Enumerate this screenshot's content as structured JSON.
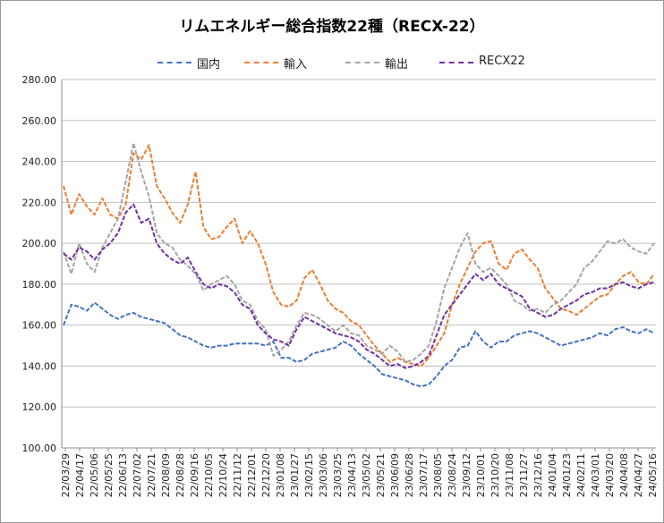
{
  "chart_data": {
    "type": "line",
    "title": "リムエネルギー総合指数22種（RECX-22）",
    "ylim": [
      100,
      280
    ],
    "yticks": [
      "100.00",
      "120.00",
      "140.00",
      "160.00",
      "180.00",
      "200.00",
      "220.00",
      "240.00",
      "260.00",
      "280.00"
    ],
    "grid": true,
    "legend_position": "top",
    "x_tick_labels": [
      "22/03/29",
      "22/04/17",
      "22/05/06",
      "22/05/25",
      "22/06/13",
      "22/07/02",
      "22/07/21",
      "22/08/09",
      "22/08/28",
      "22/09/16",
      "22/10/05",
      "22/10/24",
      "22/11/12",
      "22/12/01",
      "22/12/20",
      "23/01/08",
      "23/01/27",
      "23/02/15",
      "23/03/06",
      "23/03/25",
      "23/04/13",
      "23/05/02",
      "23/05/21",
      "23/06/09",
      "23/06/28",
      "23/07/17",
      "23/08/05",
      "23/08/24",
      "23/09/12",
      "23/10/01",
      "23/10/20",
      "23/11/08",
      "23/11/27",
      "23/12/16",
      "24/01/04",
      "24/01/23",
      "24/02/11",
      "24/03/01",
      "24/03/20",
      "24/04/08",
      "24/04/27",
      "24/05/16"
    ],
    "series": [
      {
        "name": "国内",
        "color": "#4472C4",
        "values": [
          160,
          170,
          169,
          167,
          171,
          168,
          165,
          163,
          165,
          166,
          164,
          163,
          162,
          161,
          158,
          155,
          154,
          152,
          150,
          149,
          150,
          150,
          151,
          151,
          151,
          151,
          150,
          152,
          144,
          144,
          142,
          143,
          146,
          147,
          148,
          149,
          152,
          150,
          146,
          143,
          140,
          136,
          135,
          134,
          133,
          131,
          130,
          131,
          135,
          140,
          143,
          149,
          150,
          157,
          152,
          149,
          152,
          152,
          155,
          156,
          157,
          156,
          154,
          152,
          150,
          151,
          152,
          153,
          154,
          156,
          155,
          158,
          159,
          157,
          156,
          158,
          156
        ]
      },
      {
        "name": "輸入",
        "color": "#ED7D31",
        "values": [
          228,
          214,
          224,
          218,
          214,
          222,
          214,
          212,
          219,
          244,
          241,
          248,
          228,
          222,
          215,
          210,
          219,
          235,
          208,
          202,
          203,
          208,
          212,
          200,
          206,
          200,
          190,
          176,
          170,
          169,
          172,
          183,
          187,
          180,
          172,
          168,
          166,
          162,
          160,
          155,
          150,
          146,
          142,
          144,
          142,
          141,
          140,
          144,
          150,
          156,
          170,
          180,
          188,
          196,
          200,
          201,
          190,
          187,
          195,
          197,
          192,
          188,
          178,
          173,
          168,
          167,
          165,
          168,
          171,
          174,
          175,
          180,
          184,
          186,
          181,
          180,
          185
        ]
      },
      {
        "name": "輸出",
        "color": "#A5A5A5",
        "values": [
          196,
          185,
          200,
          190,
          186,
          198,
          205,
          212,
          230,
          249,
          235,
          223,
          205,
          200,
          198,
          192,
          189,
          185,
          177,
          180,
          182,
          184,
          180,
          172,
          170,
          162,
          158,
          145,
          148,
          152,
          160,
          166,
          165,
          163,
          160,
          157,
          160,
          156,
          155,
          150,
          148,
          146,
          150,
          147,
          142,
          143,
          146,
          150,
          162,
          178,
          188,
          198,
          205,
          190,
          186,
          188,
          184,
          180,
          172,
          170,
          167,
          168,
          166,
          170,
          172,
          176,
          180,
          188,
          191,
          196,
          201,
          200,
          202,
          198,
          196,
          195,
          200
        ]
      },
      {
        "name": "RECX22",
        "color": "#7030A0",
        "values": [
          195,
          192,
          198,
          196,
          192,
          197,
          200,
          205,
          215,
          219,
          210,
          212,
          200,
          195,
          192,
          190,
          193,
          186,
          180,
          178,
          180,
          179,
          176,
          170,
          168,
          160,
          156,
          153,
          152,
          150,
          158,
          164,
          162,
          160,
          158,
          156,
          155,
          154,
          152,
          148,
          146,
          143,
          140,
          141,
          139,
          140,
          142,
          145,
          155,
          165,
          170,
          175,
          180,
          185,
          182,
          185,
          180,
          178,
          176,
          174,
          168,
          166,
          164,
          165,
          168,
          170,
          172,
          175,
          176,
          178,
          178,
          180,
          181,
          179,
          178,
          180,
          181
        ]
      }
    ]
  }
}
